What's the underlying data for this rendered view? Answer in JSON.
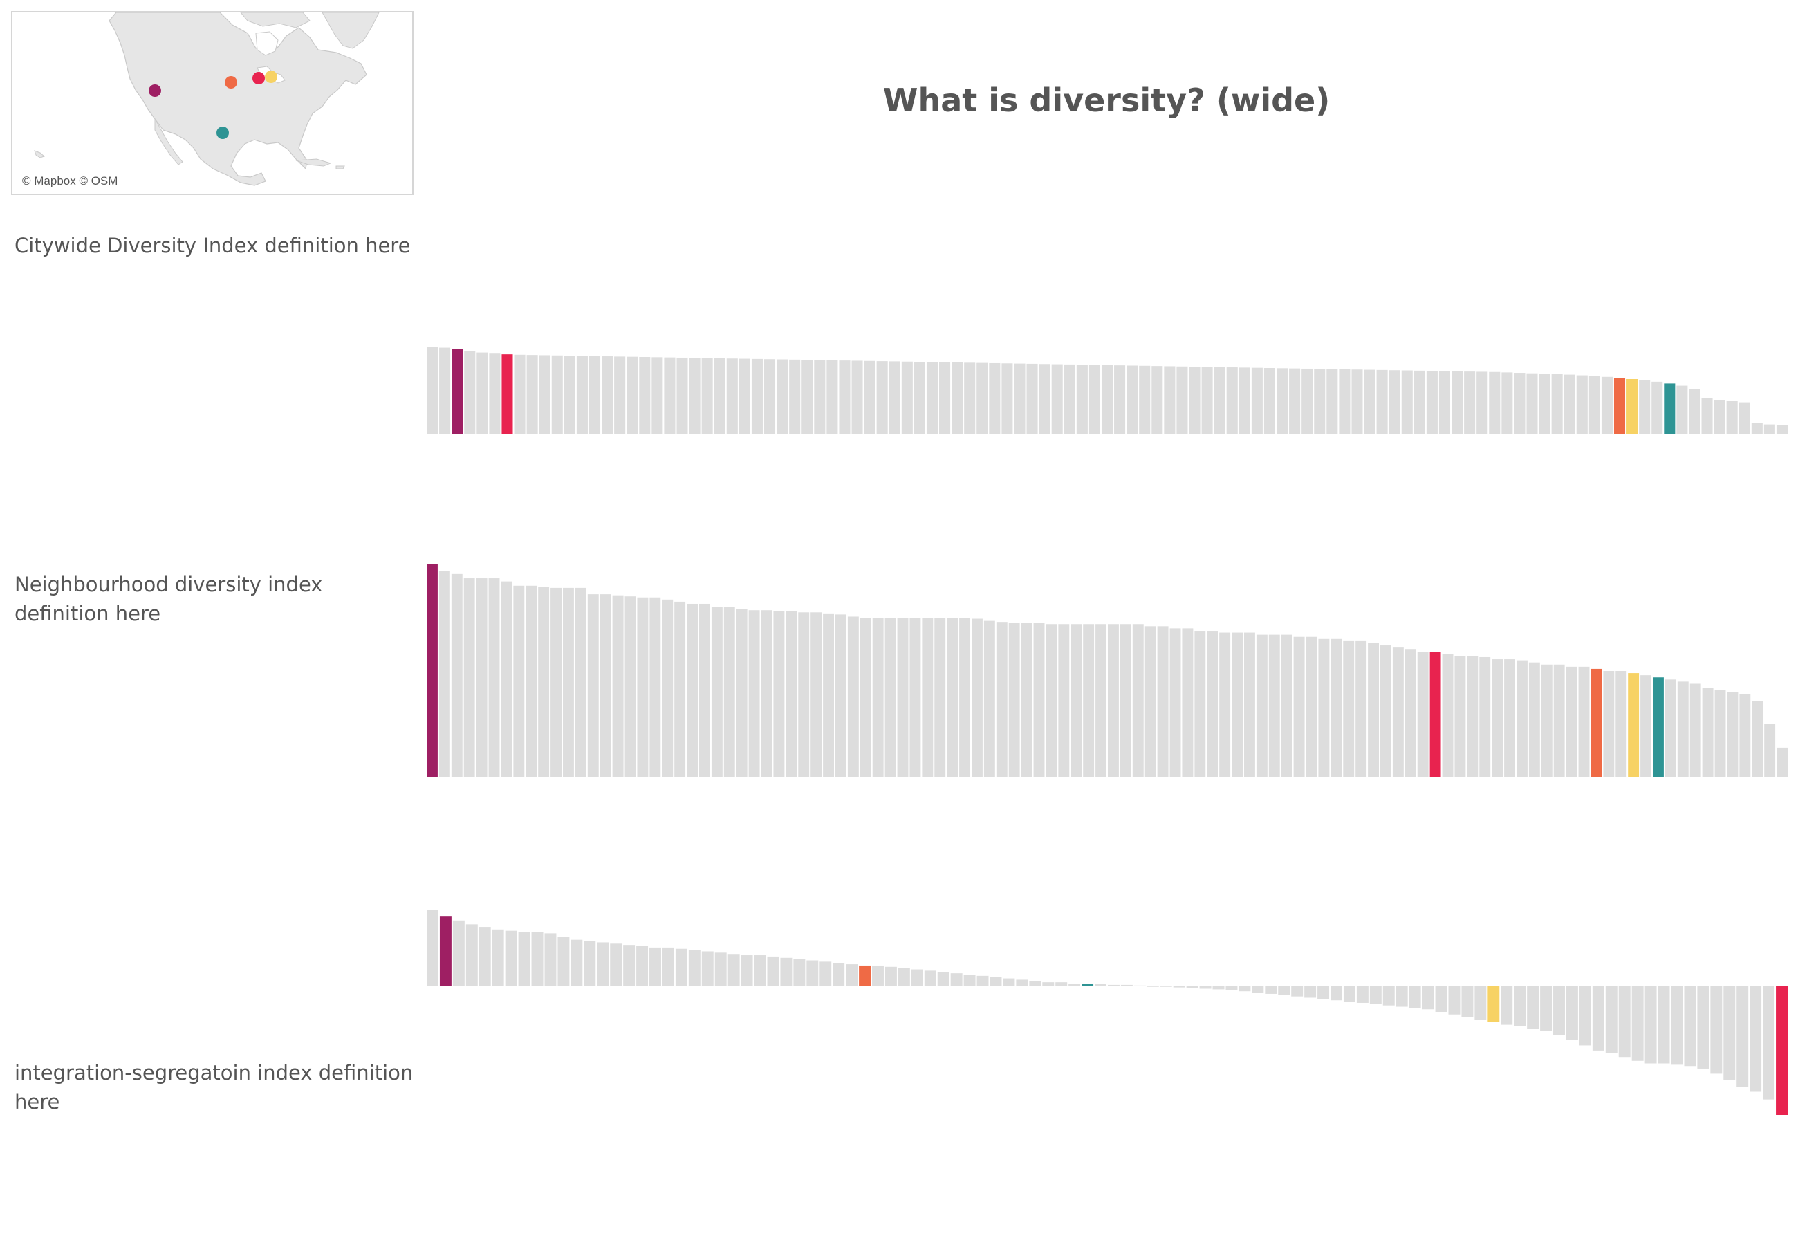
{
  "title": "What is diversity? (wide)",
  "map": {
    "credit": "© Mapbox © OSM",
    "land_color": "#e6e6e6",
    "water_color": "#ffffff",
    "markers": [
      {
        "name": "magenta-city-marker",
        "color": "#9e1f63"
      },
      {
        "name": "orange-city-marker",
        "color": "#ef6a45"
      },
      {
        "name": "red-city-marker",
        "color": "#e8234f"
      },
      {
        "name": "yellow-city-marker",
        "color": "#f7d264"
      },
      {
        "name": "teal-city-marker",
        "color": "#2e9494"
      }
    ]
  },
  "labels": {
    "citywide": "Citywide Diversity Index definition here",
    "neighbourhood": "Neighbourhood diversity index definition here",
    "integration": "integration-segregatoin index definition here"
  },
  "colors": {
    "base": "#dddddd",
    "magenta": "#9e1f63",
    "red": "#e8234f",
    "orange": "#ef6a45",
    "yellow": "#f7d264",
    "teal": "#2e9494"
  },
  "chart_data": [
    {
      "type": "bar",
      "name": "citywide-diversity-index",
      "title": "",
      "xlabel": "",
      "ylabel": "",
      "ylim": [
        0,
        1
      ],
      "grid": false,
      "sorted": "descending",
      "values": [
        0.79,
        0.784,
        0.77,
        0.75,
        0.74,
        0.73,
        0.724,
        0.72,
        0.718,
        0.716,
        0.714,
        0.712,
        0.71,
        0.708,
        0.706,
        0.704,
        0.702,
        0.7,
        0.698,
        0.696,
        0.694,
        0.692,
        0.69,
        0.688,
        0.686,
        0.684,
        0.682,
        0.68,
        0.678,
        0.676,
        0.674,
        0.672,
        0.67,
        0.668,
        0.666,
        0.664,
        0.662,
        0.66,
        0.658,
        0.656,
        0.654,
        0.652,
        0.65,
        0.648,
        0.646,
        0.644,
        0.642,
        0.64,
        0.638,
        0.636,
        0.634,
        0.632,
        0.63,
        0.628,
        0.626,
        0.624,
        0.622,
        0.62,
        0.618,
        0.616,
        0.614,
        0.612,
        0.61,
        0.608,
        0.606,
        0.604,
        0.602,
        0.6,
        0.598,
        0.596,
        0.594,
        0.592,
        0.59,
        0.588,
        0.586,
        0.584,
        0.582,
        0.58,
        0.578,
        0.576,
        0.574,
        0.572,
        0.57,
        0.568,
        0.566,
        0.564,
        0.56,
        0.556,
        0.552,
        0.548,
        0.544,
        0.54,
        0.534,
        0.528,
        0.52,
        0.512,
        0.5,
        0.488,
        0.476,
        0.46,
        0.44,
        0.41,
        0.33,
        0.31,
        0.3,
        0.29,
        0.1,
        0.09,
        0.085
      ],
      "highlights": [
        {
          "index": 2,
          "color": "#9e1f63"
        },
        {
          "index": 6,
          "color": "#e8234f"
        },
        {
          "index": 95,
          "color": "#ef6a45"
        },
        {
          "index": 96,
          "color": "#f7d264"
        },
        {
          "index": 99,
          "color": "#2e9494"
        }
      ]
    },
    {
      "type": "bar",
      "name": "neighbourhood-diversity-index",
      "title": "",
      "xlabel": "",
      "ylabel": "",
      "ylim": [
        0,
        1
      ],
      "grid": false,
      "sorted": "descending",
      "values": [
        1.0,
        0.97,
        0.955,
        0.935,
        0.935,
        0.935,
        0.92,
        0.9,
        0.9,
        0.895,
        0.89,
        0.89,
        0.89,
        0.86,
        0.86,
        0.855,
        0.85,
        0.845,
        0.845,
        0.835,
        0.825,
        0.815,
        0.815,
        0.8,
        0.8,
        0.79,
        0.785,
        0.785,
        0.78,
        0.78,
        0.775,
        0.775,
        0.77,
        0.765,
        0.755,
        0.75,
        0.75,
        0.75,
        0.75,
        0.75,
        0.75,
        0.75,
        0.75,
        0.75,
        0.745,
        0.735,
        0.73,
        0.725,
        0.725,
        0.725,
        0.72,
        0.72,
        0.72,
        0.72,
        0.72,
        0.72,
        0.72,
        0.72,
        0.71,
        0.71,
        0.7,
        0.7,
        0.685,
        0.685,
        0.68,
        0.68,
        0.68,
        0.67,
        0.67,
        0.67,
        0.66,
        0.66,
        0.65,
        0.65,
        0.64,
        0.64,
        0.63,
        0.62,
        0.61,
        0.6,
        0.59,
        0.59,
        0.58,
        0.57,
        0.57,
        0.565,
        0.555,
        0.555,
        0.55,
        0.54,
        0.53,
        0.53,
        0.52,
        0.52,
        0.51,
        0.5,
        0.5,
        0.49,
        0.48,
        0.47,
        0.46,
        0.45,
        0.44,
        0.42,
        0.41,
        0.4,
        0.39,
        0.36,
        0.25,
        0.14
      ],
      "highlights": [
        {
          "index": 0,
          "color": "#9e1f63"
        },
        {
          "index": 81,
          "color": "#e8234f"
        },
        {
          "index": 94,
          "color": "#ef6a45"
        },
        {
          "index": 97,
          "color": "#f7d264"
        },
        {
          "index": 99,
          "color": "#2e9494"
        }
      ]
    },
    {
      "type": "bar",
      "name": "integration-segregation-index",
      "title": "",
      "xlabel": "",
      "ylabel": "",
      "ylim": [
        -1,
        0.6
      ],
      "grid": false,
      "sorted": "descending",
      "values": [
        0.59,
        0.54,
        0.51,
        0.48,
        0.46,
        0.44,
        0.43,
        0.42,
        0.42,
        0.41,
        0.38,
        0.36,
        0.35,
        0.34,
        0.33,
        0.32,
        0.31,
        0.3,
        0.3,
        0.29,
        0.28,
        0.27,
        0.26,
        0.25,
        0.24,
        0.24,
        0.23,
        0.22,
        0.21,
        0.2,
        0.19,
        0.18,
        0.17,
        0.16,
        0.16,
        0.15,
        0.14,
        0.13,
        0.12,
        0.11,
        0.1,
        0.09,
        0.08,
        0.07,
        0.06,
        0.05,
        0.04,
        0.03,
        0.03,
        0.02,
        0.02,
        0.02,
        0.01,
        0.01,
        0.005,
        0.0,
        -0.005,
        -0.01,
        -0.015,
        -0.02,
        -0.025,
        -0.03,
        -0.04,
        -0.05,
        -0.06,
        -0.07,
        -0.08,
        -0.09,
        -0.1,
        -0.11,
        -0.12,
        -0.13,
        -0.14,
        -0.15,
        -0.16,
        -0.17,
        -0.18,
        -0.2,
        -0.22,
        -0.24,
        -0.26,
        -0.28,
        -0.3,
        -0.31,
        -0.33,
        -0.35,
        -0.38,
        -0.42,
        -0.46,
        -0.5,
        -0.52,
        -0.55,
        -0.58,
        -0.6,
        -0.6,
        -0.61,
        -0.62,
        -0.64,
        -0.68,
        -0.73,
        -0.78,
        -0.82,
        -0.88,
        -1.0
      ],
      "highlights": [
        {
          "index": 1,
          "color": "#9e1f63"
        },
        {
          "index": 33,
          "color": "#ef6a45"
        },
        {
          "index": 50,
          "color": "#2e9494"
        },
        {
          "index": 81,
          "color": "#f7d264"
        },
        {
          "index": 103,
          "color": "#e8234f"
        }
      ]
    }
  ]
}
